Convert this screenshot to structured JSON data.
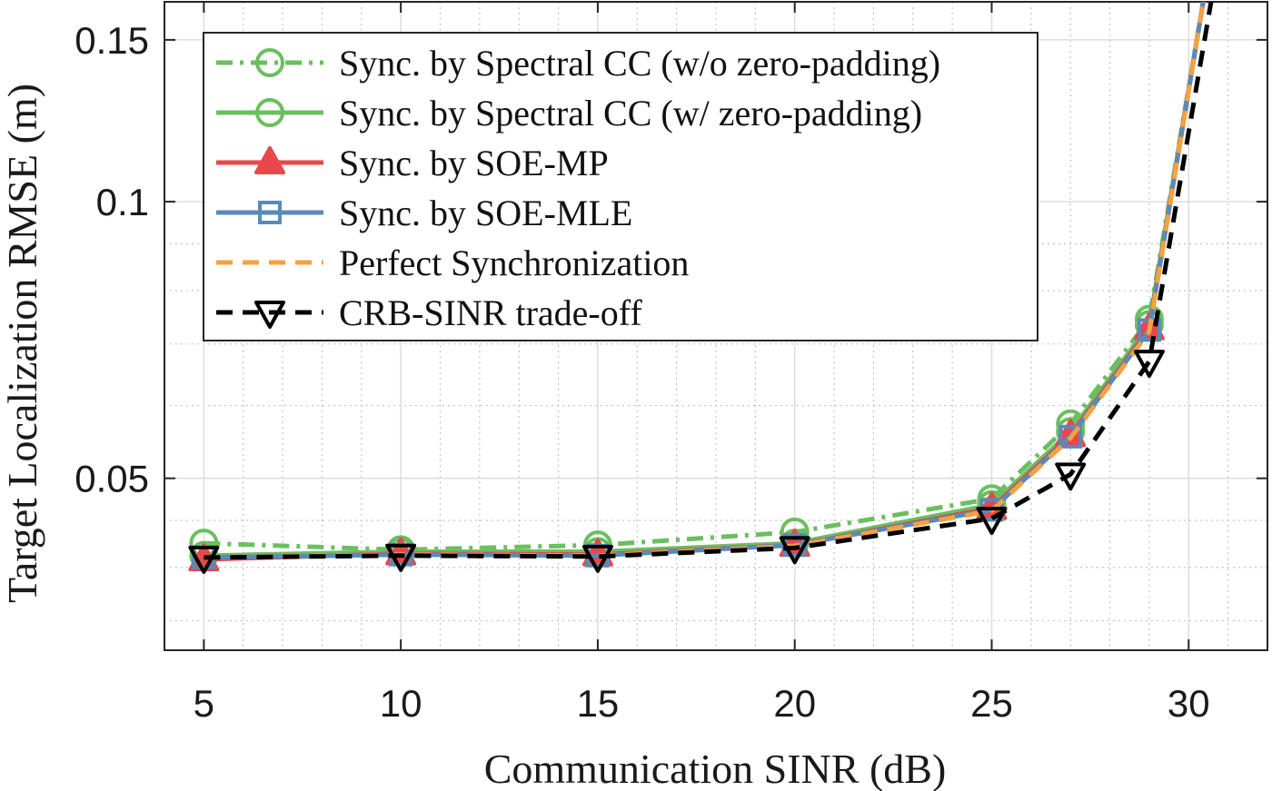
{
  "chart_data": {
    "type": "line",
    "title": "",
    "xlabel": "Communication SINR (dB)",
    "ylabel": "Target Localization RMSE (m)",
    "yscale": "log",
    "xlim": [
      4,
      32
    ],
    "ylim": [
      0.0325,
      0.165
    ],
    "xticks": [
      5,
      10,
      15,
      20,
      25,
      30
    ],
    "xtick_labels": [
      "5",
      "10",
      "15",
      "20",
      "25",
      "30"
    ],
    "yticks": [
      0.05,
      0.1,
      0.15
    ],
    "ytick_labels": [
      "0.05",
      "0.1",
      "0.15"
    ],
    "grid": true,
    "legend_position": "top-left",
    "x": [
      5,
      10,
      15,
      20,
      25,
      27,
      29,
      30.4
    ],
    "series": [
      {
        "name": "Sync. by Spectral CC (w/o zero-padding)",
        "values": [
          0.0425,
          0.0418,
          0.0423,
          0.0437,
          0.0475,
          0.0573,
          0.0745,
          0.168
        ],
        "color": "#6abf5e",
        "dash": "dashdot",
        "marker": "circle",
        "marker_filled": false
      },
      {
        "name": "Sync. by Spectral CC (w/ zero-padding)",
        "values": [
          0.0412,
          0.0416,
          0.0416,
          0.0425,
          0.0468,
          0.0562,
          0.0735,
          0.168
        ],
        "color": "#6abf5e",
        "dash": "solid",
        "marker": "circle",
        "marker_filled": false
      },
      {
        "name": "Sync. by SOE-MP",
        "values": [
          0.0408,
          0.0414,
          0.0413,
          0.0423,
          0.0464,
          0.0557,
          0.0728,
          0.168
        ],
        "color": "#e8474b",
        "dash": "solid",
        "marker": "triangle",
        "marker_filled": true
      },
      {
        "name": "Sync. by SOE-MLE",
        "values": [
          0.041,
          0.0413,
          0.0412,
          0.0423,
          0.0462,
          0.0555,
          0.0725,
          0.168
        ],
        "color": "#5a8ab8",
        "dash": "solid",
        "marker": "square",
        "marker_filled": false
      },
      {
        "name": "Perfect Synchronization",
        "values": [
          0.041,
          0.0413,
          0.0412,
          0.0422,
          0.0461,
          0.0553,
          0.0722,
          0.168
        ],
        "color": "#f7a140",
        "dash": "dashed",
        "marker": "none",
        "marker_filled": false
      },
      {
        "name": "CRB-SINR trade-off",
        "x": [
          5,
          10,
          15,
          20,
          25,
          27,
          29,
          30.6
        ],
        "values": [
          0.041,
          0.0412,
          0.0411,
          0.042,
          0.0452,
          0.0505,
          0.067,
          0.168
        ],
        "color": "#000000",
        "dash": "dashed",
        "marker": "triangle-down",
        "marker_filled": false
      }
    ]
  }
}
